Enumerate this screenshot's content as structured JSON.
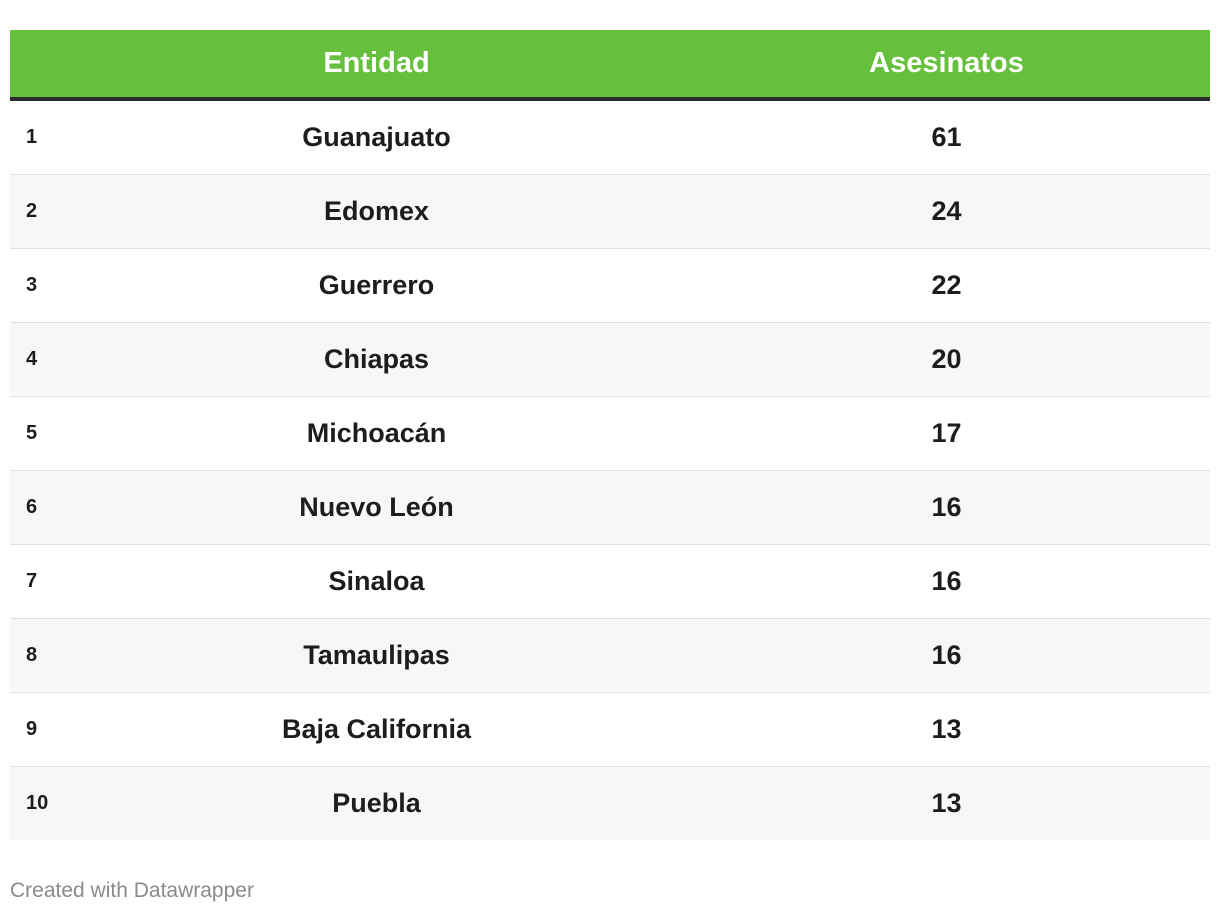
{
  "chart_data": {
    "type": "table",
    "columns": [
      "",
      "Entidad",
      "Asesinatos"
    ],
    "rows": [
      {
        "rank": "1",
        "entidad": "Guanajuato",
        "asesinatos": 61
      },
      {
        "rank": "2",
        "entidad": "Edomex",
        "asesinatos": 24
      },
      {
        "rank": "3",
        "entidad": "Guerrero",
        "asesinatos": 22
      },
      {
        "rank": "4",
        "entidad": "Chiapas",
        "asesinatos": 20
      },
      {
        "rank": "5",
        "entidad": "Michoacán",
        "asesinatos": 17
      },
      {
        "rank": "6",
        "entidad": "Nuevo León",
        "asesinatos": 16
      },
      {
        "rank": "7",
        "entidad": "Sinaloa",
        "asesinatos": 16
      },
      {
        "rank": "8",
        "entidad": "Tamaulipas",
        "asesinatos": 16
      },
      {
        "rank": "9",
        "entidad": "Baja California",
        "asesinatos": 13
      },
      {
        "rank": "10",
        "entidad": "Puebla",
        "asesinatos": 13
      }
    ],
    "header_color": "#66bf3d",
    "header_text_color": "#ffffff",
    "stripe_color": "#f7f7f7"
  },
  "footer": {
    "credit": "Created with Datawrapper"
  }
}
